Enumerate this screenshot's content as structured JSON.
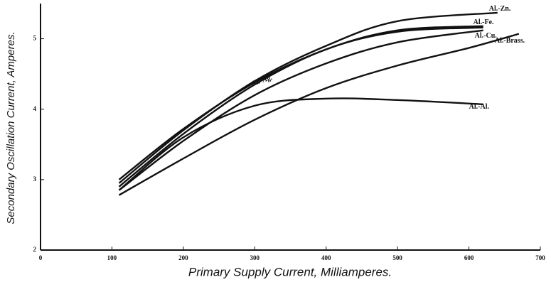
{
  "chart_data": {
    "type": "line",
    "xlabel": "Primary Supply Current, Milliamperes.",
    "ylabel": "Secondary Oscillation Current, Amperes.",
    "xlim": [
      0,
      700
    ],
    "xticks": [
      0,
      100,
      200,
      300,
      400,
      500,
      600,
      700
    ],
    "ylim": [
      2,
      5.5
    ],
    "yticks": [
      2,
      3,
      4,
      5
    ],
    "grid": false,
    "series": [
      {
        "name": "Al.-Zn.",
        "color": "#111111",
        "x": [
          110,
          200,
          300,
          400,
          500,
          640
        ],
        "values": [
          2.95,
          3.7,
          4.4,
          4.9,
          5.25,
          5.37
        ]
      },
      {
        "name": "Al.-Fe.",
        "color": "#111111",
        "x": [
          110,
          200,
          300,
          400,
          500,
          620
        ],
        "values": [
          2.9,
          3.65,
          4.35,
          4.85,
          5.1,
          5.16
        ]
      },
      {
        "name": "Al.-Cu.",
        "color": "#111111",
        "x": [
          110,
          200,
          300,
          400,
          500,
          620
        ],
        "values": [
          2.85,
          3.55,
          4.2,
          4.65,
          4.95,
          5.12
        ]
      },
      {
        "name": "Al.-Ag.",
        "color": "#111111",
        "x": [
          110,
          200,
          300,
          400,
          500,
          620
        ],
        "values": [
          3.0,
          3.72,
          4.38,
          4.85,
          5.12,
          5.18
        ]
      },
      {
        "name": "Al.-Brass.",
        "color": "#111111",
        "x": [
          110,
          200,
          300,
          400,
          500,
          600,
          670
        ],
        "values": [
          2.78,
          3.3,
          3.85,
          4.3,
          4.62,
          4.87,
          5.07
        ]
      },
      {
        "name": "Al.-Al.",
        "color": "#111111",
        "x": [
          110,
          200,
          300,
          400,
          500,
          620
        ],
        "values": [
          2.85,
          3.6,
          4.05,
          4.15,
          4.13,
          4.07
        ]
      }
    ]
  }
}
